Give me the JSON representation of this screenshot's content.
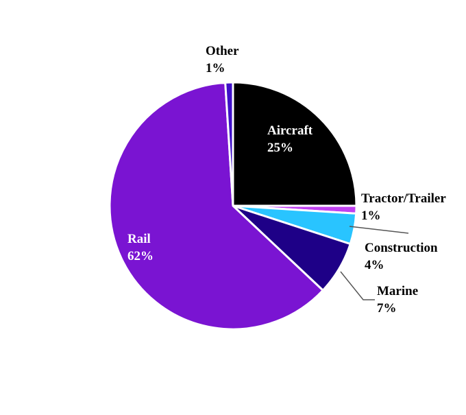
{
  "chart_data": {
    "type": "pie",
    "title": "",
    "slices": [
      {
        "label": "Aircraft",
        "value": 25,
        "value_label": "25%",
        "color": "#000000",
        "label_color": "#ffffff"
      },
      {
        "label": "Tractor/Trailer",
        "value": 1,
        "value_label": "1%",
        "color": "#c040f0",
        "label_color": "#000000"
      },
      {
        "label": "Construction",
        "value": 4,
        "value_label": "4%",
        "color": "#29c4ff",
        "label_color": "#000000"
      },
      {
        "label": "Marine",
        "value": 7,
        "value_label": "7%",
        "color": "#1e0087",
        "label_color": "#000000"
      },
      {
        "label": "Rail",
        "value": 62,
        "value_label": "62%",
        "color": "#7a14d2",
        "label_color": "#ffffff"
      },
      {
        "label": "Other",
        "value": 1,
        "value_label": "1%",
        "color": "#3f10c8",
        "label_color": "#000000"
      }
    ],
    "start_angle": "12 o'clock",
    "direction": "clockwise",
    "legend": "none"
  }
}
